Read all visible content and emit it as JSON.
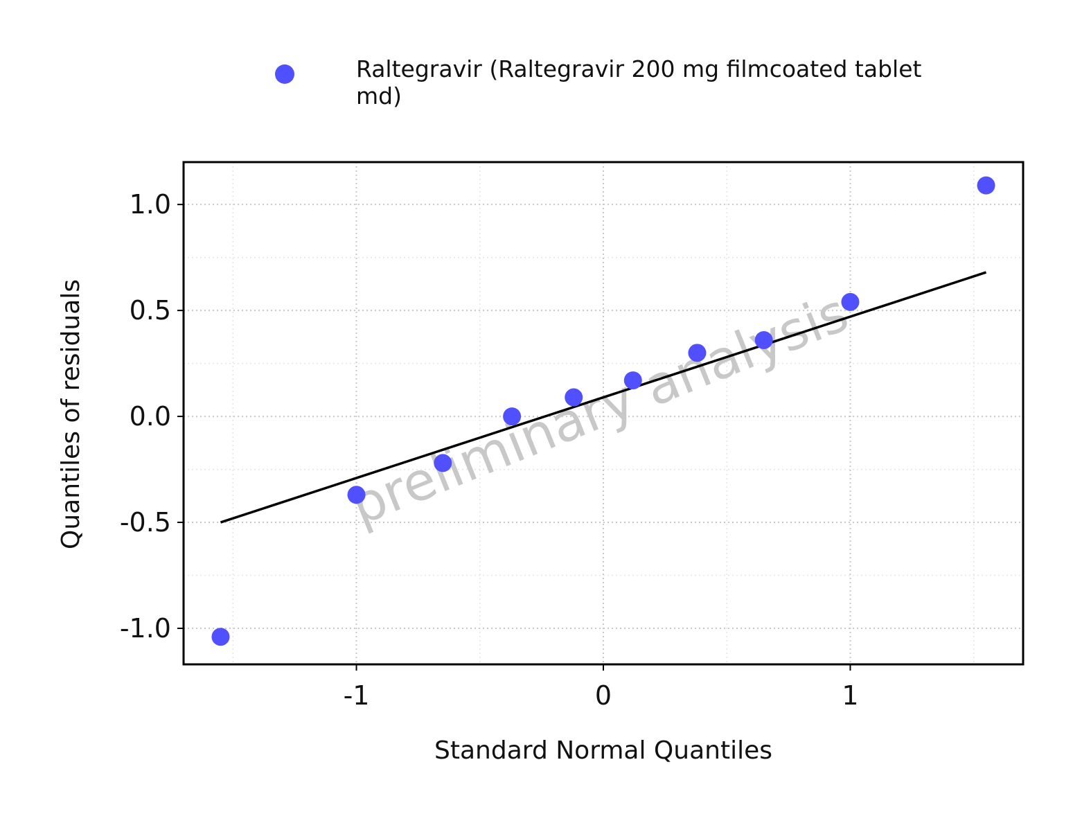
{
  "chart_data": {
    "type": "scatter",
    "xlabel": "Standard Normal Quantiles",
    "ylabel": "Quantiles of residuals",
    "xlim": [
      -1.7,
      1.7
    ],
    "ylim": [
      -1.17,
      1.2
    ],
    "x_ticks": [
      {
        "value": -1,
        "label": "-1"
      },
      {
        "value": 0,
        "label": "0"
      },
      {
        "value": 1,
        "label": "1"
      }
    ],
    "y_ticks": [
      {
        "value": 1.0,
        "label": "1.0"
      },
      {
        "value": 0.5,
        "label": "0.5"
      },
      {
        "value": 0.0,
        "label": "0.0"
      },
      {
        "value": -0.5,
        "label": "-0.5"
      },
      {
        "value": -1.0,
        "label": "-1.0"
      }
    ],
    "grid": true,
    "legend": {
      "position": "top",
      "entries": [
        {
          "label_line1": "Raltegravir (Raltegravir 200 mg filmcoated tablet",
          "label_line2": "md)",
          "color": "#5050ff"
        }
      ]
    },
    "series": [
      {
        "name": "Raltegravir (Raltegravir 200 mg filmcoated tablet md)",
        "color": "#5050ff",
        "points": [
          {
            "x": -1.55,
            "y": -1.04
          },
          {
            "x": -1.0,
            "y": -0.37
          },
          {
            "x": -0.65,
            "y": -0.22
          },
          {
            "x": -0.37,
            "y": 0.0
          },
          {
            "x": -0.12,
            "y": 0.09
          },
          {
            "x": 0.12,
            "y": 0.17
          },
          {
            "x": 0.38,
            "y": 0.3
          },
          {
            "x": 0.65,
            "y": 0.36
          },
          {
            "x": 1.0,
            "y": 0.54
          },
          {
            "x": 1.55,
            "y": 1.09
          }
        ]
      }
    ],
    "reference_line": {
      "x1": -1.55,
      "y1": -0.5,
      "x2": 1.55,
      "y2": 0.68,
      "color": "#000000"
    },
    "watermark": "preliminary analysis"
  }
}
